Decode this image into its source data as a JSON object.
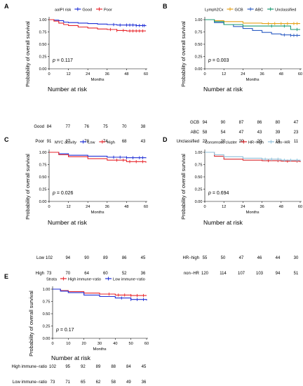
{
  "chart_data": [
    {
      "type": "line",
      "panel": "A",
      "legend_title": "aaIPI risk",
      "legend_position": "top",
      "xlabel": "Months",
      "ylabel": "Probability of overall survival",
      "xlim": [
        0,
        60
      ],
      "ylim": [
        0,
        1
      ],
      "x_ticks": [
        "0",
        "12",
        "24",
        "36",
        "48",
        "60"
      ],
      "y_ticks": [
        "0.00",
        "0.25",
        "0.50",
        "0.75",
        "1.00"
      ],
      "p_label": "p",
      "p_value": "= 0.117",
      "risk_title": "Number at risk",
      "risk_x": [
        0,
        12,
        24,
        36,
        48,
        60
      ],
      "series": [
        {
          "name": "Good",
          "color": "#1f2fd6",
          "x": [
            0,
            3,
            6,
            9,
            12,
            18,
            24,
            30,
            36,
            42,
            48,
            54,
            60
          ],
          "y": [
            1.0,
            0.99,
            0.98,
            0.95,
            0.94,
            0.93,
            0.92,
            0.91,
            0.9,
            0.89,
            0.89,
            0.88,
            0.87
          ],
          "censor_x": [
            40,
            44,
            48,
            50,
            52,
            54,
            56,
            58,
            59
          ],
          "risk": [
            "84",
            "77",
            "76",
            "75",
            "70",
            "38"
          ]
        },
        {
          "name": "Poor",
          "color": "#e8262b",
          "x": [
            0,
            3,
            6,
            9,
            12,
            18,
            24,
            30,
            36,
            42,
            48,
            54,
            60
          ],
          "y": [
            1.0,
            0.97,
            0.93,
            0.9,
            0.88,
            0.85,
            0.83,
            0.81,
            0.8,
            0.78,
            0.77,
            0.77,
            0.77
          ],
          "censor_x": [
            38,
            42,
            46,
            50,
            52,
            54,
            56,
            58
          ],
          "risk": [
            "91",
            "87",
            "78",
            "74",
            "68",
            "43"
          ]
        }
      ]
    },
    {
      "type": "line",
      "panel": "B",
      "legend_title": "Lymph2Cx",
      "legend_position": "top",
      "xlabel": "Months",
      "ylabel": "Probability of overall survival",
      "xlim": [
        0,
        60
      ],
      "ylim": [
        0,
        1
      ],
      "x_ticks": [
        "0",
        "12",
        "24",
        "36",
        "48",
        "60"
      ],
      "y_ticks": [
        "0.00",
        "0.25",
        "0.50",
        "0.75",
        "1.00"
      ],
      "p_label": "p",
      "p_value": "= 0.003",
      "risk_title": "Number at risk",
      "risk_x": [
        0,
        12,
        24,
        36,
        48,
        60
      ],
      "series": [
        {
          "name": "GCB",
          "color": "#e5a117",
          "x": [
            0,
            6,
            12,
            24,
            36,
            48,
            60
          ],
          "y": [
            1.0,
            0.98,
            0.96,
            0.93,
            0.92,
            0.92,
            0.92
          ],
          "censor_x": [
            40,
            44,
            48,
            52,
            56,
            58
          ],
          "risk": [
            "94",
            "90",
            "87",
            "86",
            "80",
            "47"
          ]
        },
        {
          "name": "ABC",
          "color": "#2f5fc4",
          "x": [
            0,
            6,
            12,
            18,
            24,
            30,
            36,
            42,
            48,
            54,
            60
          ],
          "y": [
            1.0,
            0.94,
            0.9,
            0.86,
            0.82,
            0.78,
            0.74,
            0.71,
            0.69,
            0.68,
            0.68
          ],
          "censor_x": [
            50,
            54,
            56,
            58
          ],
          "risk": [
            "58",
            "54",
            "47",
            "43",
            "39",
            "23"
          ]
        },
        {
          "name": "Unclassified",
          "color": "#1a9a72",
          "x": [
            0,
            6,
            12,
            24,
            36,
            48,
            54,
            60
          ],
          "y": [
            1.0,
            0.96,
            0.9,
            0.87,
            0.87,
            0.87,
            0.8,
            0.8
          ],
          "censor_x": [
            42,
            50,
            58
          ],
          "risk": [
            "23",
            "20",
            "20",
            "20",
            "19",
            "11"
          ]
        }
      ]
    },
    {
      "type": "line",
      "panel": "C",
      "legend_title": "MYC activity",
      "legend_position": "top",
      "xlabel": "Months",
      "ylabel": "Probability of overall survival",
      "xlim": [
        0,
        60
      ],
      "ylim": [
        0,
        1
      ],
      "x_ticks": [
        "0",
        "12",
        "24",
        "36",
        "48",
        "60"
      ],
      "y_ticks": [
        "0.00",
        "0.25",
        "0.50",
        "0.75",
        "1.00"
      ],
      "p_label": "p",
      "p_value": "= 0.026",
      "risk_title": "Number at risk",
      "risk_x": [
        0,
        12,
        24,
        36,
        48,
        60
      ],
      "series": [
        {
          "name": "Low",
          "color": "#1f2fd6",
          "x": [
            0,
            6,
            12,
            24,
            36,
            48,
            60
          ],
          "y": [
            1.0,
            0.97,
            0.94,
            0.92,
            0.9,
            0.89,
            0.88
          ],
          "censor_x": [
            40,
            44,
            48,
            52,
            56,
            58
          ],
          "risk": [
            "102",
            "94",
            "90",
            "89",
            "86",
            "45"
          ]
        },
        {
          "name": "High",
          "color": "#e8262b",
          "x": [
            0,
            6,
            12,
            24,
            36,
            48,
            60
          ],
          "y": [
            1.0,
            0.95,
            0.91,
            0.87,
            0.84,
            0.81,
            0.79
          ],
          "censor_x": [
            42,
            46,
            50,
            54,
            58
          ],
          "risk": [
            "73",
            "70",
            "64",
            "60",
            "52",
            "36"
          ]
        }
      ]
    },
    {
      "type": "line",
      "panel": "D",
      "legend_title": "Consensus cluster",
      "legend_position": "top",
      "xlabel": "Months",
      "ylabel": "Probability of overall survival",
      "xlim": [
        0,
        60
      ],
      "ylim": [
        0,
        1
      ],
      "x_ticks": [
        "0",
        "12",
        "24",
        "36",
        "48",
        "60"
      ],
      "y_ticks": [
        "0.00",
        "0.25",
        "0.50",
        "0.75",
        "1.00"
      ],
      "p_label": "p",
      "p_value": "= 0.694",
      "risk_title": "Number at risk",
      "risk_x": [
        0,
        12,
        24,
        36,
        48,
        60
      ],
      "series": [
        {
          "name": "HR−high",
          "color": "#d9262b",
          "x": [
            0,
            6,
            12,
            24,
            36,
            48,
            60
          ],
          "y": [
            1.0,
            0.92,
            0.86,
            0.84,
            0.83,
            0.82,
            0.8
          ],
          "censor_x": [
            40,
            46,
            52,
            58
          ],
          "risk": [
            "55",
            "50",
            "47",
            "46",
            "44",
            "30"
          ]
        },
        {
          "name": "non−HR",
          "color": "#8fbfd9",
          "x": [
            0,
            6,
            12,
            24,
            36,
            48,
            60
          ],
          "y": [
            1.0,
            0.95,
            0.91,
            0.88,
            0.86,
            0.84,
            0.82
          ],
          "censor_x": [
            38,
            42,
            46,
            50,
            54,
            58
          ],
          "risk": [
            "120",
            "114",
            "107",
            "103",
            "94",
            "51"
          ]
        }
      ]
    },
    {
      "type": "line",
      "panel": "E",
      "legend_title": "Strata",
      "legend_position": "top",
      "xlabel": "Months",
      "ylabel": "Probability of overall survival",
      "xlim": [
        0,
        60
      ],
      "ylim": [
        0,
        1
      ],
      "x_ticks": [
        "0",
        "10",
        "20",
        "30",
        "40",
        "50",
        "60"
      ],
      "y_ticks": [
        "0.00",
        "0.25",
        "0.50",
        "0.75",
        "1.00"
      ],
      "p_label": "p",
      "p_value": "= 0.17",
      "risk_title": "Number at risk",
      "risk_x": [
        0,
        10,
        20,
        30,
        40,
        50,
        60
      ],
      "series": [
        {
          "name": "High immune−ratio",
          "color": "#e8262b",
          "x": [
            0,
            5,
            10,
            20,
            30,
            40,
            50,
            60
          ],
          "y": [
            1.0,
            0.97,
            0.95,
            0.92,
            0.9,
            0.88,
            0.87,
            0.87
          ],
          "censor_x": [
            36,
            42,
            46,
            50,
            54,
            58
          ],
          "risk": [
            "102",
            "95",
            "92",
            "89",
            "88",
            "84",
            "45"
          ]
        },
        {
          "name": "Low immune−ratio",
          "color": "#1f2fd6",
          "x": [
            0,
            5,
            10,
            20,
            30,
            40,
            50,
            60
          ],
          "y": [
            1.0,
            0.96,
            0.93,
            0.88,
            0.85,
            0.82,
            0.79,
            0.77
          ],
          "censor_x": [
            44,
            50,
            54,
            58
          ],
          "risk": [
            "73",
            "71",
            "65",
            "62",
            "58",
            "49",
            "36"
          ]
        }
      ]
    }
  ]
}
